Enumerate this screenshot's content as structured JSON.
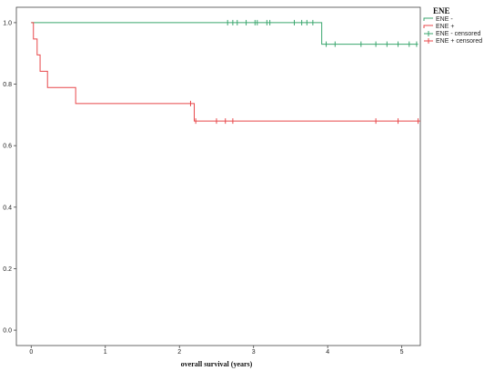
{
  "chart_data": {
    "type": "line",
    "title": "",
    "xlabel": "overall survival (years)",
    "ylabel": "",
    "xlim": [
      -0.2,
      5.25
    ],
    "ylim": [
      -0.05,
      1.05
    ],
    "x_ticks": [
      0,
      1,
      2,
      3,
      4,
      5
    ],
    "y_ticks": [
      0.0,
      0.2,
      0.4,
      0.6,
      0.8,
      1.0
    ],
    "x_tick_labels": [
      "0",
      "1",
      "2",
      "3",
      "4",
      "5"
    ],
    "y_tick_labels": [
      "0.0",
      "0.2",
      "0.4",
      "0.6",
      "0.8",
      "1.0"
    ],
    "grid": false,
    "legend": {
      "title": "ENE",
      "placement": "top-right",
      "entries": [
        "ENE -",
        "ENE +",
        "ENE - censored",
        "ENE + censored"
      ]
    },
    "series": [
      {
        "name": "ENE -",
        "color": "#3aa66e",
        "steps": [
          [
            0,
            1.0
          ],
          [
            3.92,
            1.0
          ],
          [
            3.92,
            0.93
          ],
          [
            5.22,
            0.93
          ]
        ],
        "censored": [
          [
            2.65,
            1.0
          ],
          [
            2.72,
            1.0
          ],
          [
            2.78,
            1.0
          ],
          [
            2.9,
            1.0
          ],
          [
            3.02,
            1.0
          ],
          [
            3.05,
            1.0
          ],
          [
            3.18,
            1.0
          ],
          [
            3.22,
            1.0
          ],
          [
            3.55,
            1.0
          ],
          [
            3.65,
            1.0
          ],
          [
            3.72,
            1.0
          ],
          [
            3.8,
            1.0
          ],
          [
            3.98,
            0.93
          ],
          [
            4.1,
            0.93
          ],
          [
            4.45,
            0.93
          ],
          [
            4.65,
            0.93
          ],
          [
            4.8,
            0.93
          ],
          [
            4.95,
            0.93
          ],
          [
            5.1,
            0.93
          ],
          [
            5.2,
            0.93
          ]
        ]
      },
      {
        "name": "ENE +",
        "color": "#e8474a",
        "steps": [
          [
            0,
            1.0
          ],
          [
            0.03,
            1.0
          ],
          [
            0.03,
            0.947
          ],
          [
            0.08,
            0.947
          ],
          [
            0.08,
            0.895
          ],
          [
            0.12,
            0.895
          ],
          [
            0.12,
            0.842
          ],
          [
            0.22,
            0.842
          ],
          [
            0.22,
            0.789
          ],
          [
            0.6,
            0.789
          ],
          [
            0.6,
            0.737
          ],
          [
            2.2,
            0.737
          ],
          [
            2.2,
            0.68
          ],
          [
            5.25,
            0.68
          ]
        ],
        "censored": [
          [
            2.15,
            0.737
          ],
          [
            2.22,
            0.68
          ],
          [
            2.5,
            0.68
          ],
          [
            2.62,
            0.68
          ],
          [
            2.72,
            0.68
          ],
          [
            4.65,
            0.68
          ],
          [
            4.95,
            0.68
          ],
          [
            5.22,
            0.68
          ]
        ]
      }
    ]
  }
}
